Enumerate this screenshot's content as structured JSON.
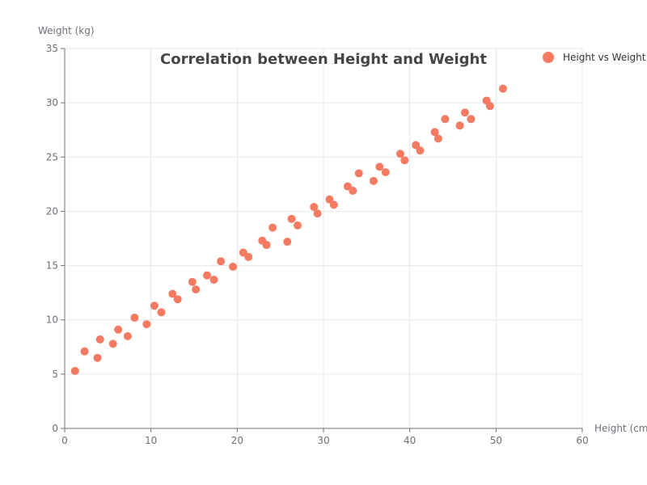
{
  "chart_data": {
    "type": "scatter",
    "title": "Correlation between Height and Weight",
    "xlabel": "Height (cm)",
    "ylabel": "Weight (kg)",
    "xlim": [
      0,
      60
    ],
    "ylim": [
      0,
      35
    ],
    "x_ticks": [
      "0",
      "10",
      "20",
      "30",
      "40",
      "50",
      "60"
    ],
    "y_ticks": [
      "0",
      "5",
      "10",
      "15",
      "20",
      "25",
      "30",
      "35"
    ],
    "grid": true,
    "legend_position": "top-right",
    "color": "#f47b61",
    "series": [
      {
        "name": "Height vs Weight",
        "x": [
          1.2,
          2.3,
          3.8,
          4.1,
          5.6,
          6.2,
          7.3,
          8.1,
          9.5,
          10.4,
          11.2,
          12.5,
          13.1,
          14.8,
          15.2,
          16.5,
          17.3,
          18.1,
          19.5,
          20.7,
          21.3,
          22.9,
          23.4,
          24.1,
          25.8,
          26.3,
          27.0,
          28.9,
          29.3,
          30.7,
          31.2,
          32.8,
          33.4,
          34.1,
          35.8,
          36.5,
          37.2,
          38.9,
          39.4,
          40.7,
          41.2,
          42.9,
          43.3,
          44.1,
          45.8,
          46.4,
          47.1,
          48.9,
          49.3,
          50.8
        ],
        "y": [
          5.3,
          7.1,
          6.5,
          8.2,
          7.8,
          9.1,
          8.5,
          10.2,
          9.6,
          11.3,
          10.7,
          12.4,
          11.9,
          13.5,
          12.8,
          14.1,
          13.7,
          15.4,
          14.9,
          16.2,
          15.8,
          17.3,
          16.9,
          18.5,
          17.2,
          19.3,
          18.7,
          20.4,
          19.8,
          21.1,
          20.6,
          22.3,
          21.9,
          23.5,
          22.8,
          24.1,
          23.6,
          25.3,
          24.7,
          26.1,
          25.6,
          27.3,
          26.7,
          28.5,
          27.9,
          29.1,
          28.5,
          30.2,
          29.7,
          31.3
        ]
      }
    ]
  }
}
